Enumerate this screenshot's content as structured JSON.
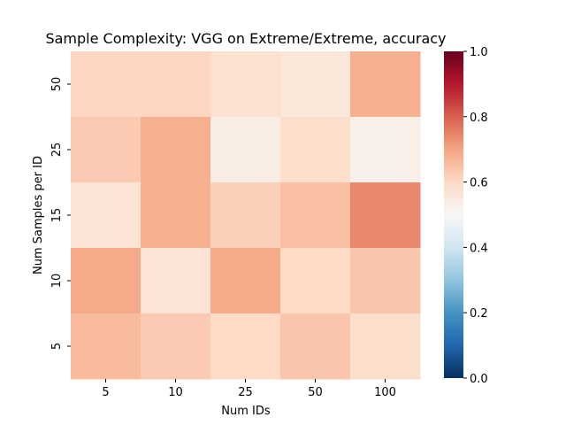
{
  "chart_data": {
    "type": "heatmap",
    "title": "Sample Complexity: VGG on Extreme/Extreme, accuracy",
    "xlabel": "Num IDs",
    "ylabel": "Num Samples per ID",
    "x_categories": [
      "5",
      "10",
      "25",
      "50",
      "100"
    ],
    "y_categories": [
      "50",
      "25",
      "15",
      "10",
      "5"
    ],
    "values": [
      [
        0.61,
        0.61,
        0.58,
        0.56,
        0.68
      ],
      [
        0.63,
        0.68,
        0.54,
        0.59,
        0.53
      ],
      [
        0.57,
        0.68,
        0.62,
        0.65,
        0.74
      ],
      [
        0.69,
        0.57,
        0.69,
        0.6,
        0.64
      ],
      [
        0.66,
        0.63,
        0.6,
        0.64,
        0.59
      ]
    ],
    "colorbar": {
      "colormap": "RdBu_r",
      "range": [
        0.0,
        1.0
      ],
      "ticks": [
        "0.0",
        "0.2",
        "0.4",
        "0.6",
        "0.8",
        "1.0"
      ]
    }
  }
}
